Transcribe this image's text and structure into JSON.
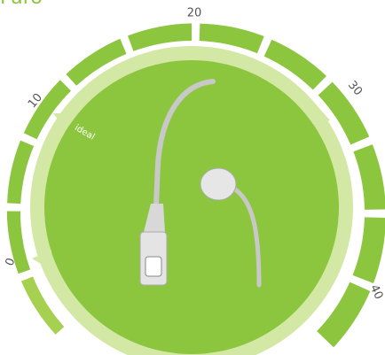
{
  "title": "Paro",
  "scale": {
    "labels": [
      "0",
      "10",
      "20",
      "30",
      "40"
    ]
  },
  "marker": "ideal"
}
